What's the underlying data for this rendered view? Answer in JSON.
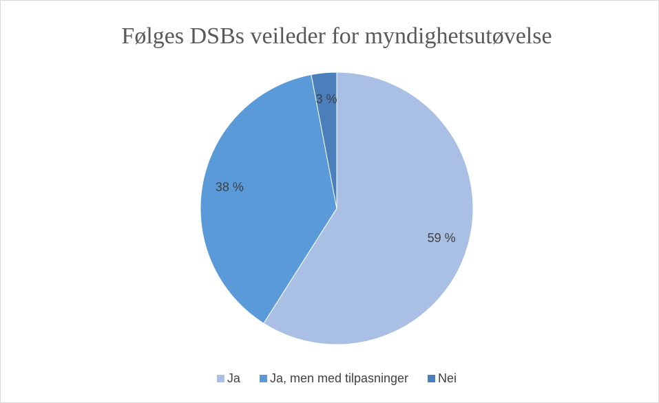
{
  "chart_data": {
    "type": "pie",
    "title": "Følges DSBs veileder for myndighetsutøvelse",
    "categories": [
      "Ja",
      "Ja, men med tilpasninger",
      "Nei"
    ],
    "values": [
      59,
      38,
      3
    ],
    "value_labels": [
      "59 %",
      "38 %",
      "3 %"
    ],
    "colors": [
      "#a9c0e4",
      "#5a9ad8",
      "#4a7fbc"
    ],
    "legend": "bottom"
  }
}
